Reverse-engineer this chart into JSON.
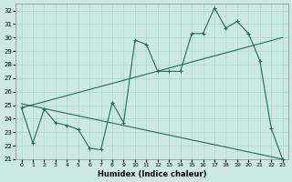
{
  "xlabel": "Humidex (Indice chaleur)",
  "bg_color": "#cce8e4",
  "line_color": "#1e6b5e",
  "grid_color": "#aad4ce",
  "xlim": [
    -0.5,
    23.5
  ],
  "ylim": [
    21,
    32.5
  ],
  "xticks": [
    0,
    1,
    2,
    3,
    4,
    5,
    6,
    7,
    8,
    9,
    10,
    11,
    12,
    13,
    14,
    15,
    16,
    17,
    18,
    19,
    20,
    21,
    22,
    23
  ],
  "yticks": [
    21,
    22,
    23,
    24,
    25,
    26,
    27,
    28,
    29,
    30,
    31,
    32
  ],
  "line1_x": [
    0,
    1,
    2,
    3,
    4,
    5,
    6,
    7,
    8,
    9,
    10,
    11,
    12,
    13,
    14,
    15,
    16,
    17,
    18,
    19,
    20,
    21,
    22,
    23
  ],
  "line1_y": [
    24.8,
    22.2,
    24.7,
    23.7,
    23.5,
    23.2,
    21.8,
    21.7,
    25.2,
    23.7,
    29.8,
    29.5,
    27.5,
    27.5,
    27.5,
    30.3,
    30.3,
    32.2,
    30.7,
    31.2,
    30.3,
    28.3,
    23.3,
    21.0
  ],
  "line2_x": [
    0,
    23
  ],
  "line2_y": [
    24.8,
    30.0
  ],
  "line3_x": [
    0,
    23
  ],
  "line3_y": [
    25.1,
    21.0
  ]
}
